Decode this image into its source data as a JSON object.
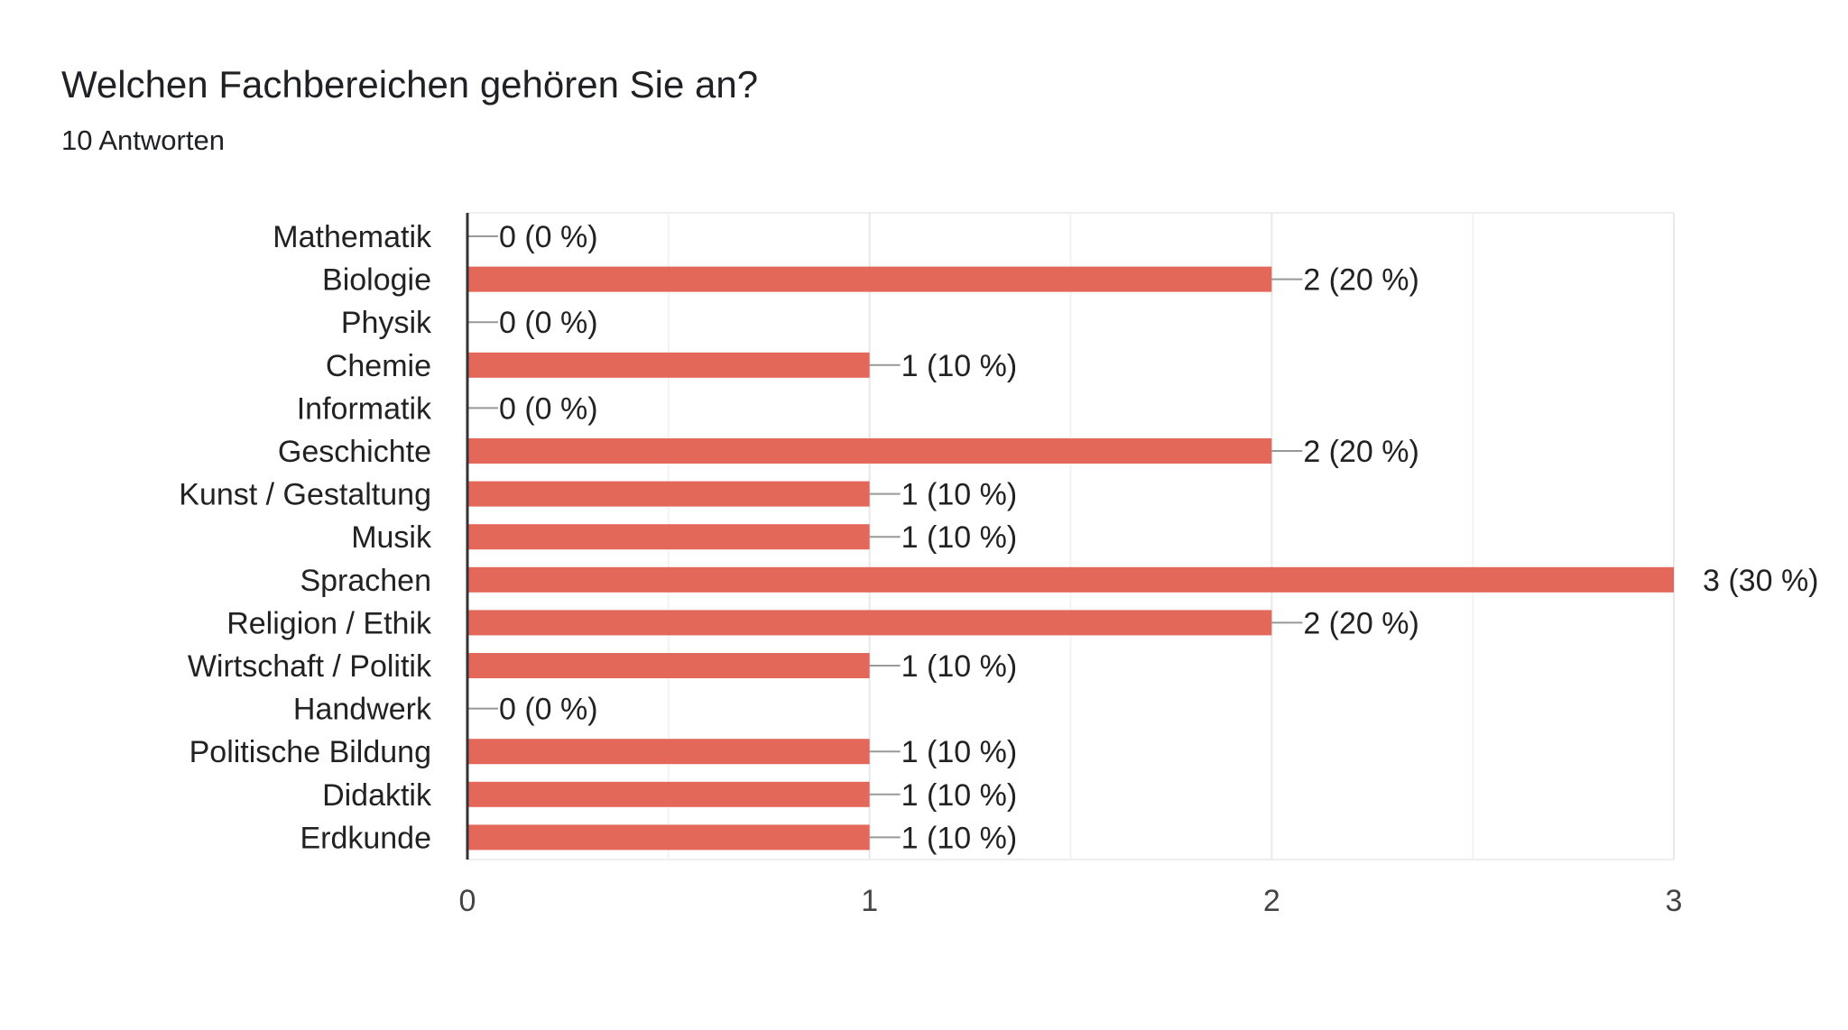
{
  "header": {
    "title": "Welchen Fachbereichen gehören Sie an?",
    "subtitle": "10 Antworten"
  },
  "chart_data": {
    "type": "bar",
    "orientation": "horizontal",
    "title": "Welchen Fachbereichen gehören Sie an?",
    "subtitle": "10 Antworten",
    "categories": [
      "Mathematik",
      "Biologie",
      "Physik",
      "Chemie",
      "Informatik",
      "Geschichte",
      "Kunst / Gestaltung",
      "Musik",
      "Sprachen",
      "Religion / Ethik",
      "Wirtschaft / Politik",
      "Handwerk",
      "Politische Bildung",
      "Didaktik",
      "Erdkunde"
    ],
    "values": [
      0,
      2,
      0,
      1,
      0,
      2,
      1,
      1,
      3,
      2,
      1,
      0,
      1,
      1,
      1
    ],
    "data_labels": [
      "0 (0 %)",
      "2 (20 %)",
      "0 (0 %)",
      "1 (10 %)",
      "0 (0 %)",
      "2 (20 %)",
      "1 (10 %)",
      "1 (10 %)",
      "3 (30 %)",
      "2 (20 %)",
      "1 (10 %)",
      "0 (0 %)",
      "1 (10 %)",
      "1 (10 %)",
      "1 (10 %)"
    ],
    "x_ticks": [
      "0",
      "1",
      "2",
      "3"
    ],
    "xlim": [
      0,
      3
    ],
    "xlabel": "",
    "ylabel": "",
    "grid": true,
    "legend": "none",
    "colors": {
      "bar": "#e3685a",
      "grid": "#eeeeee",
      "axis": "#333333",
      "leader": "#999999"
    }
  }
}
